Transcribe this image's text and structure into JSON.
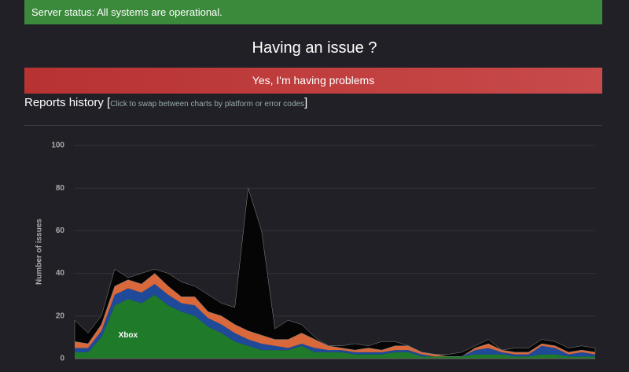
{
  "status": {
    "text": "Server status: All systems are operational."
  },
  "question": {
    "title": "Having an issue ?",
    "button": "Yes, I'm having problems"
  },
  "history": {
    "title": "Reports history",
    "open": "[",
    "hint": "Click to swap between charts by platform or error codes",
    "close": "]"
  },
  "chart_data": {
    "type": "stacked-area",
    "y_label": "Number of issues",
    "categories": [
      null,
      null,
      null,
      null,
      null,
      null,
      null,
      null,
      null,
      null,
      null,
      null,
      null,
      null,
      null,
      null,
      null,
      null,
      null,
      null,
      null,
      null,
      null,
      null,
      null,
      null,
      null,
      null,
      null,
      null,
      null,
      null,
      null,
      null,
      null,
      null,
      null,
      null,
      null,
      null
    ],
    "ylim": [
      0,
      100
    ],
    "yticks": [
      0,
      20,
      40,
      60,
      80,
      100
    ],
    "grid": true,
    "series": [
      {
        "name": "Xbox",
        "color": "#1f7a2a",
        "values": [
          3,
          3,
          10,
          25,
          28,
          26,
          30,
          25,
          22,
          20,
          15,
          12,
          8,
          6,
          4,
          4,
          4,
          6,
          3,
          3,
          3,
          2,
          2,
          2,
          3,
          3,
          1,
          1,
          1,
          1,
          2,
          2,
          2,
          1,
          1,
          2,
          2,
          1,
          1,
          1
        ]
      },
      {
        "color": "#1f4a9a",
        "values": [
          2,
          2,
          3,
          5,
          5,
          5,
          5,
          5,
          4,
          5,
          4,
          4,
          4,
          3,
          3,
          2,
          1,
          1,
          2,
          1,
          1,
          1,
          1,
          1,
          1,
          1,
          1,
          0,
          0,
          0,
          2,
          3,
          1,
          1,
          1,
          4,
          3,
          1,
          2,
          1
        ]
      },
      {
        "color": "#d9683a",
        "values": [
          3,
          2,
          3,
          4,
          4,
          4,
          5,
          4,
          3,
          4,
          3,
          4,
          4,
          4,
          4,
          3,
          4,
          5,
          4,
          2,
          1,
          1,
          2,
          1,
          2,
          2,
          1,
          1,
          0,
          0,
          1,
          2,
          1,
          1,
          1,
          1,
          1,
          1,
          1,
          1
        ]
      },
      {
        "color": "#050505",
        "values": [
          10,
          5,
          4,
          8,
          1,
          5,
          2,
          6,
          7,
          5,
          8,
          6,
          8,
          67,
          49,
          5,
          9,
          4,
          1,
          0,
          1,
          3,
          1,
          4,
          2,
          0,
          0,
          0,
          1,
          2,
          1,
          2,
          0,
          2,
          2,
          2,
          2,
          2,
          2,
          2
        ]
      }
    ]
  }
}
